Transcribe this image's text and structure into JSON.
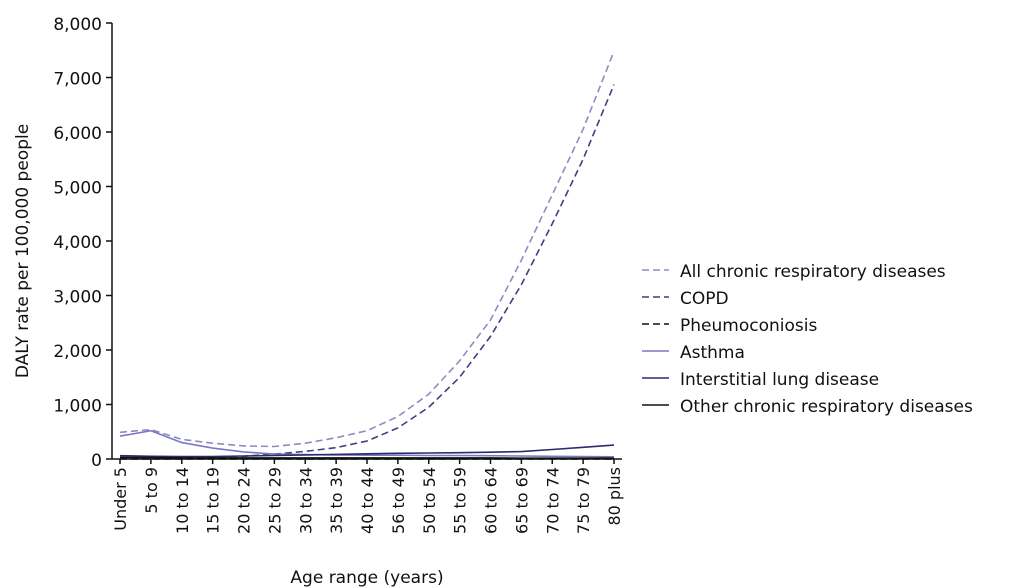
{
  "chart_data": {
    "type": "line",
    "title": "",
    "xlabel": "Age range (years)",
    "ylabel": "DALY rate per 100,000 people",
    "ylim": [
      0,
      8000
    ],
    "yticks": [
      0,
      1000,
      2000,
      3000,
      4000,
      5000,
      6000,
      7000,
      8000
    ],
    "ytick_labels": [
      "0",
      "1,000",
      "2,000",
      "3,000",
      "4,000",
      "5,000",
      "6,000",
      "7,000",
      "8,000"
    ],
    "grid": false,
    "legend_position": "right",
    "categories": [
      "Under 5",
      "5 to 9",
      "10 to 14",
      "15 to 19",
      "20 to 24",
      "25 to 29",
      "30 to 34",
      "35 to 39",
      "40 to 44",
      "56 to 49",
      "50 to 54",
      "55 to 59",
      "60 to 64",
      "65 to 69",
      "70 to 74",
      "75 to 79",
      "80 plus"
    ],
    "series": [
      {
        "name": "All chronic respiratory diseases",
        "color": "#8c8cc4",
        "dash": "dashed",
        "values": [
          490,
          540,
          360,
          290,
          240,
          230,
          290,
          390,
          520,
          780,
          1190,
          1800,
          2550,
          3650,
          4850,
          6050,
          7480
        ]
      },
      {
        "name": "COPD",
        "color": "#3f3f84",
        "dash": "dashed",
        "values": [
          20,
          30,
          30,
          40,
          50,
          90,
          140,
          210,
          330,
          570,
          950,
          1500,
          2250,
          3200,
          4320,
          5500,
          6870
        ]
      },
      {
        "name": "Pheumoconiosis",
        "color": "#111111",
        "dash": "dashed",
        "values": [
          0,
          0,
          0,
          0,
          0,
          0,
          0,
          0,
          0,
          0,
          0,
          0,
          0,
          0,
          0,
          0,
          0
        ]
      },
      {
        "name": "Asthma",
        "color": "#7b79c4",
        "dash": "solid",
        "values": [
          420,
          520,
          300,
          200,
          130,
          90,
          80,
          75,
          70,
          70,
          65,
          65,
          60,
          55,
          50,
          45,
          40
        ]
      },
      {
        "name": "Interstitial lung disease",
        "color": "#2b2b6e",
        "dash": "solid",
        "values": [
          60,
          50,
          45,
          45,
          55,
          65,
          75,
          85,
          95,
          105,
          110,
          115,
          125,
          135,
          175,
          215,
          255
        ]
      },
      {
        "name": "Other chronic respiratory diseases",
        "color": "#111111",
        "dash": "solid",
        "values": [
          30,
          25,
          20,
          20,
          20,
          20,
          20,
          20,
          20,
          20,
          20,
          20,
          20,
          15,
          15,
          15,
          15
        ]
      }
    ]
  }
}
